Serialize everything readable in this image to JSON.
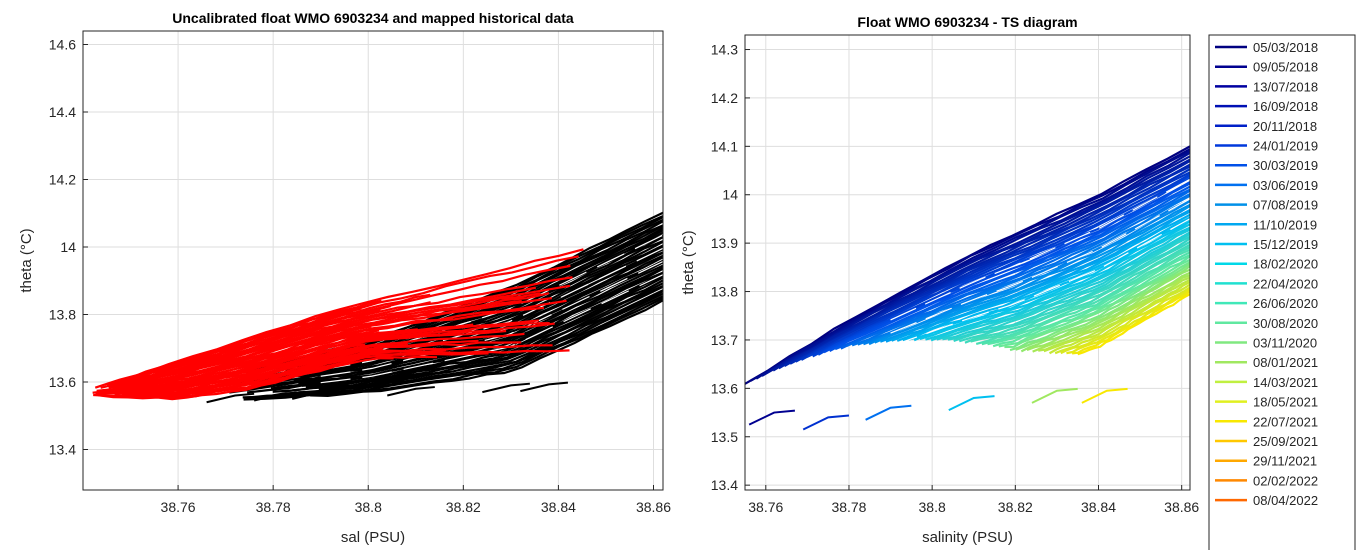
{
  "chart_data": [
    {
      "type": "line",
      "title": "Uncalibrated float WMO 6903234 and mapped historical data",
      "xlabel": "sal (PSU)",
      "ylabel": "theta (°C)",
      "xlim": [
        38.74,
        38.862
      ],
      "ylim": [
        13.28,
        14.64
      ],
      "xticks": [
        "38.76",
        "38.78",
        "38.8",
        "38.82",
        "38.84",
        "38.86"
      ],
      "yticks": [
        "13.4",
        "13.6",
        "13.8",
        "14",
        "14.2",
        "14.4",
        "14.6"
      ],
      "grid": true,
      "series": [
        {
          "color": "#000000",
          "band": {
            "upper": [
              [
                38.77,
                13.62
              ],
              [
                38.8,
                13.72
              ],
              [
                38.83,
                13.88
              ],
              [
                38.862,
                14.1
              ]
            ],
            "lower": [
              [
                38.77,
                13.54
              ],
              [
                38.8,
                13.57
              ],
              [
                38.83,
                13.63
              ],
              [
                38.862,
                13.84
              ]
            ]
          }
        },
        {
          "color": "#ff0000",
          "band": {
            "upper": [
              [
                38.742,
                13.58
              ],
              [
                38.76,
                13.66
              ],
              [
                38.79,
                13.8
              ],
              [
                38.847,
                14.0
              ]
            ],
            "lower": [
              [
                38.742,
                13.56
              ],
              [
                38.76,
                13.55
              ],
              [
                38.775,
                13.58
              ],
              [
                38.8,
                13.67
              ]
            ]
          }
        }
      ]
    },
    {
      "type": "line",
      "title": "Float WMO 6903234 - TS diagram",
      "xlabel": "salinity (PSU)",
      "ylabel": "theta (°C)",
      "xlim": [
        38.755,
        38.862
      ],
      "ylim": [
        13.39,
        14.33
      ],
      "xticks": [
        "38.76",
        "38.78",
        "38.8",
        "38.82",
        "38.84",
        "38.86"
      ],
      "yticks": [
        "13.4",
        "13.5",
        "13.6",
        "13.7",
        "13.8",
        "13.9",
        "14",
        "14.1",
        "14.2",
        "14.3"
      ],
      "grid": true,
      "legend": "outside-right",
      "legend_entries": [
        {
          "label": "05/03/2018",
          "color": "#000080"
        },
        {
          "label": "09/05/2018",
          "color": "#00008f"
        },
        {
          "label": "13/07/2018",
          "color": "#0000a0"
        },
        {
          "label": "16/09/2018",
          "color": "#0010b4"
        },
        {
          "label": "20/11/2018",
          "color": "#0020c8"
        },
        {
          "label": "24/01/2019",
          "color": "#0038dc"
        },
        {
          "label": "30/03/2019",
          "color": "#0050e8"
        },
        {
          "label": "03/06/2019",
          "color": "#0070f0"
        },
        {
          "label": "07/08/2019",
          "color": "#0090e8"
        },
        {
          "label": "11/10/2019",
          "color": "#00a8f0"
        },
        {
          "label": "15/12/2019",
          "color": "#00c0f0"
        },
        {
          "label": "18/02/2020",
          "color": "#00d8e8"
        },
        {
          "label": "22/04/2020",
          "color": "#20e0d0"
        },
        {
          "label": "26/06/2020",
          "color": "#40e8b8"
        },
        {
          "label": "30/08/2020",
          "color": "#60e8a0"
        },
        {
          "label": "03/11/2020",
          "color": "#80e880"
        },
        {
          "label": "08/01/2021",
          "color": "#a0e860"
        },
        {
          "label": "14/03/2021",
          "color": "#c0f040"
        },
        {
          "label": "18/05/2021",
          "color": "#e0f020"
        },
        {
          "label": "22/07/2021",
          "color": "#f8e800"
        },
        {
          "label": "25/09/2021",
          "color": "#ffc800"
        },
        {
          "label": "29/11/2021",
          "color": "#ffa800"
        },
        {
          "label": "02/02/2022",
          "color": "#ff8800"
        },
        {
          "label": "08/04/2022",
          "color": "#ff6800"
        }
      ],
      "band": {
        "upper": [
          [
            38.755,
            13.61
          ],
          [
            38.78,
            13.74
          ],
          [
            38.81,
            13.88
          ],
          [
            38.84,
            14.0
          ],
          [
            38.862,
            14.1
          ]
        ],
        "lower": [
          [
            38.76,
            13.54
          ],
          [
            38.78,
            13.55
          ],
          [
            38.8,
            13.57
          ],
          [
            38.82,
            13.59
          ],
          [
            38.84,
            13.65
          ],
          [
            38.862,
            13.76
          ]
        ]
      }
    }
  ]
}
